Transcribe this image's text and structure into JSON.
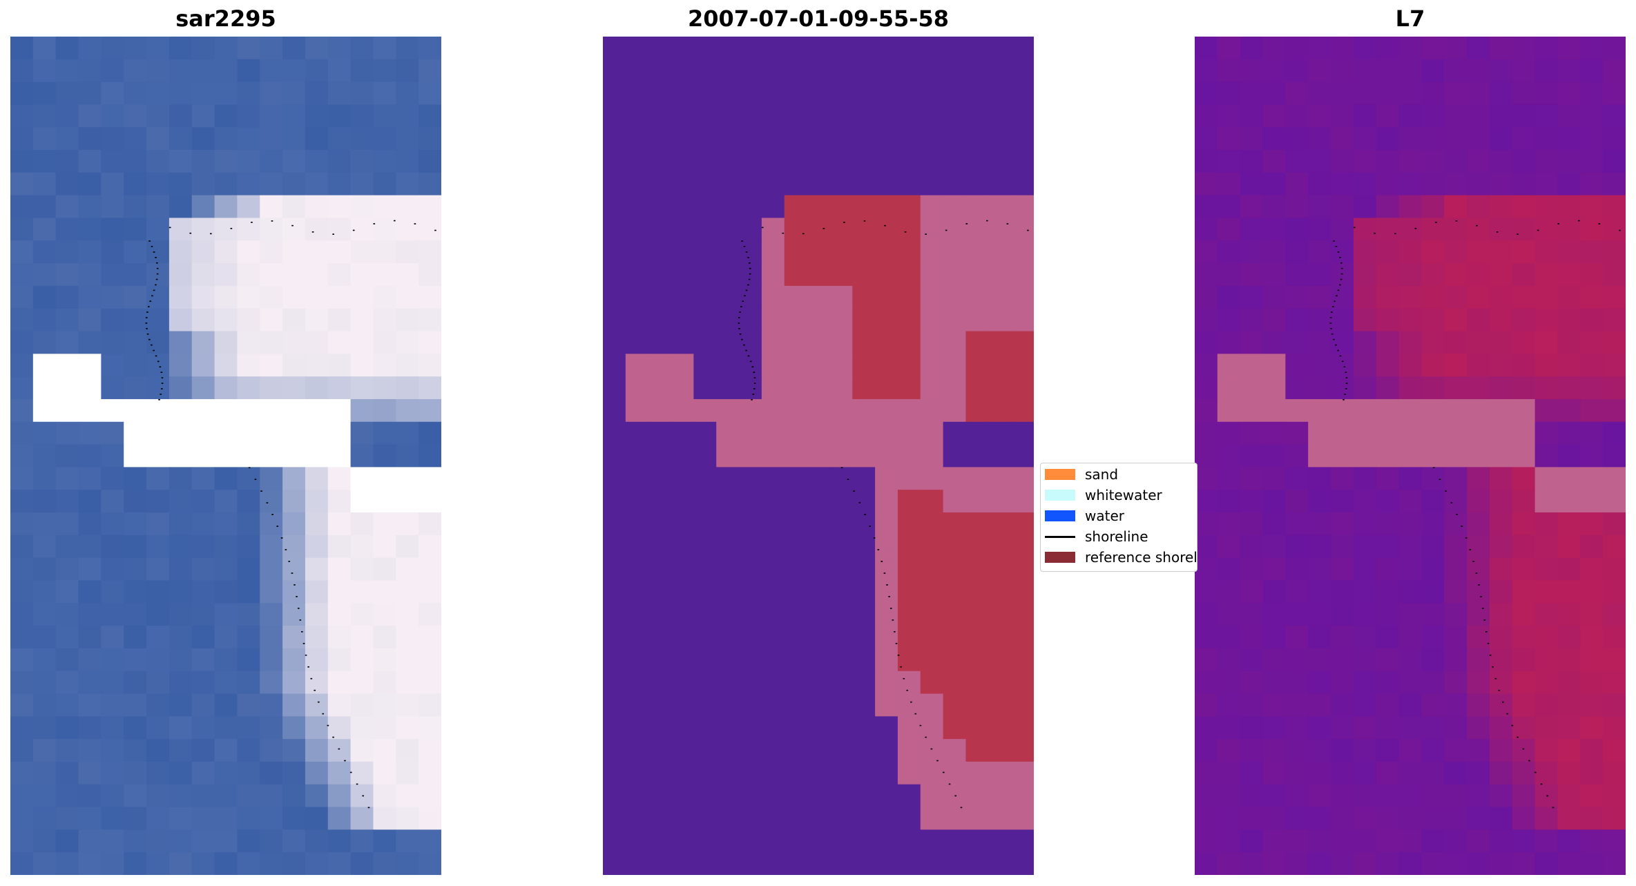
{
  "panels": [
    {
      "title": "sar2295",
      "style": "rgb"
    },
    {
      "title": "2007-07-01-09-55-58",
      "style": "class"
    },
    {
      "title": "L7",
      "style": "index"
    }
  ],
  "legend": {
    "items": [
      {
        "label": "sand",
        "color": "#ff8c3b",
        "kind": "patch"
      },
      {
        "label": "whitewater",
        "color": "#c8fbfb",
        "kind": "patch"
      },
      {
        "label": "water",
        "color": "#1155ff",
        "kind": "patch"
      },
      {
        "label": "shoreline",
        "color": "#000000",
        "kind": "line"
      },
      {
        "label": "reference shoreline buffer",
        "color": "#8b2b33",
        "kind": "patch"
      }
    ]
  },
  "colors": {
    "rgb_water": "#3b5fa6",
    "rgb_bright": "#f6eef4",
    "class_water": "#542296",
    "class_pink": "#c0628e",
    "class_red": "#b8364d",
    "index_low": "#6a15a0",
    "index_high": "#c42050",
    "nodata": "#ffffff"
  }
}
